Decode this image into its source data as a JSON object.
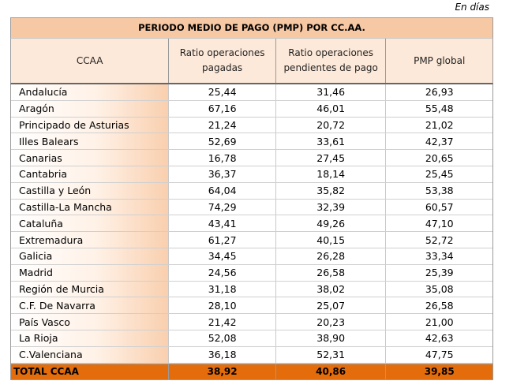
{
  "unit_label": "En días",
  "table": {
    "title": "PERIODO MEDIO DE PAGO (PMP) POR CC.AA.",
    "headers": [
      "CCAA",
      "Ratio operaciones pagadas",
      "Ratio operaciones pendientes de pago",
      "PMP global"
    ],
    "rows": [
      {
        "name": "Andalucía",
        "pagadas": "25,44",
        "pendientes": "31,46",
        "pmp": "26,93"
      },
      {
        "name": "Aragón",
        "pagadas": "67,16",
        "pendientes": "46,01",
        "pmp": "55,48"
      },
      {
        "name": "Principado de Asturias",
        "pagadas": "21,24",
        "pendientes": "20,72",
        "pmp": "21,02"
      },
      {
        "name": "Illes Balears",
        "pagadas": "52,69",
        "pendientes": "33,61",
        "pmp": "42,37"
      },
      {
        "name": "Canarias",
        "pagadas": "16,78",
        "pendientes": "27,45",
        "pmp": "20,65"
      },
      {
        "name": "Cantabria",
        "pagadas": "36,37",
        "pendientes": "18,14",
        "pmp": "25,45"
      },
      {
        "name": "Castilla y León",
        "pagadas": "64,04",
        "pendientes": "35,82",
        "pmp": "53,38"
      },
      {
        "name": "Castilla-La Mancha",
        "pagadas": "74,29",
        "pendientes": "32,39",
        "pmp": "60,57"
      },
      {
        "name": "Cataluña",
        "pagadas": "43,41",
        "pendientes": "49,26",
        "pmp": "47,10"
      },
      {
        "name": "Extremadura",
        "pagadas": "61,27",
        "pendientes": "40,15",
        "pmp": "52,72"
      },
      {
        "name": "Galicia",
        "pagadas": "34,45",
        "pendientes": "26,28",
        "pmp": "33,34"
      },
      {
        "name": "Madrid",
        "pagadas": "24,56",
        "pendientes": "26,58",
        "pmp": "25,39"
      },
      {
        "name": "Región de Murcia",
        "pagadas": "31,18",
        "pendientes": "38,02",
        "pmp": "35,08"
      },
      {
        "name": "C.F. De Navarra",
        "pagadas": "28,10",
        "pendientes": "25,07",
        "pmp": "26,58"
      },
      {
        "name": "País Vasco",
        "pagadas": "21,42",
        "pendientes": "20,23",
        "pmp": "21,00"
      },
      {
        "name": "La Rioja",
        "pagadas": "52,08",
        "pendientes": "38,90",
        "pmp": "42,63"
      },
      {
        "name": "C.Valenciana",
        "pagadas": "36,18",
        "pendientes": "52,31",
        "pmp": "47,75"
      }
    ],
    "total": {
      "name": "TOTAL CCAA",
      "pagadas": "38,92",
      "pendientes": "40,86",
      "pmp": "39,85"
    }
  },
  "colors": {
    "title_bg": "#f7c8a4",
    "header_bg": "#fde9d9",
    "total_bg": "#e46c0a"
  }
}
